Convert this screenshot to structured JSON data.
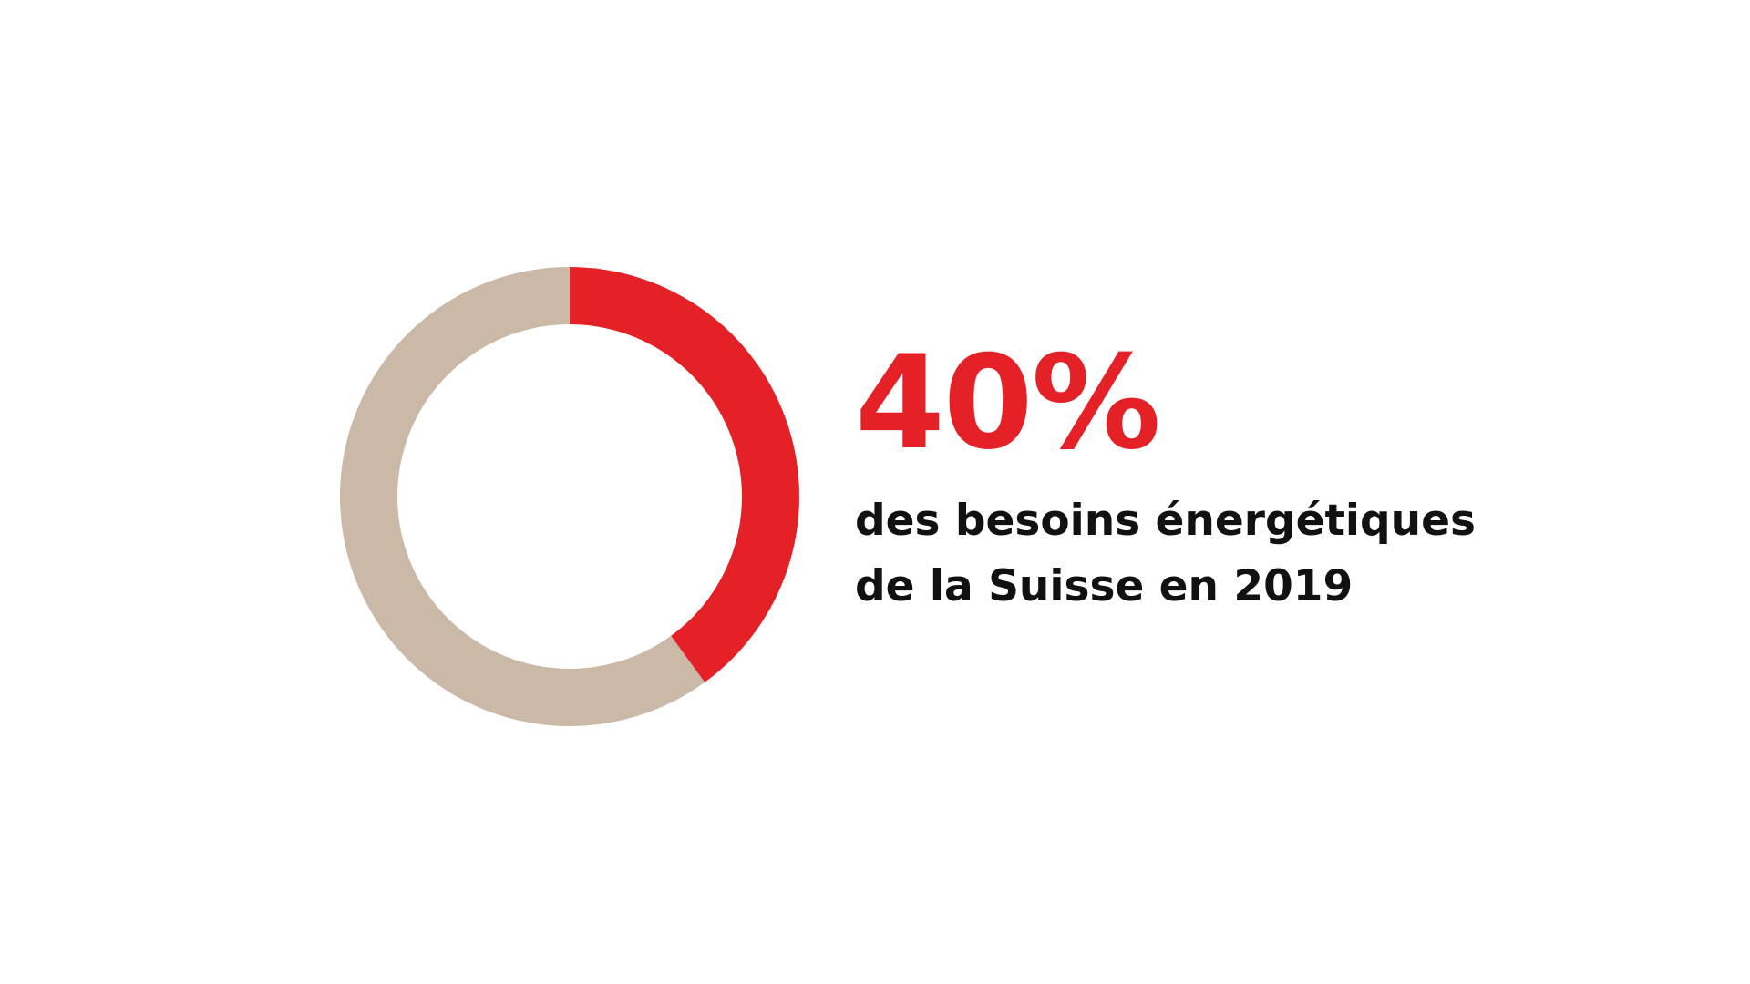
{
  "chart_data": {
    "type": "pie",
    "style": "donut",
    "slices": [
      {
        "value": 40,
        "color": "#e42127"
      },
      {
        "value": 60,
        "color": "#cbb9a8"
      }
    ],
    "start": "top",
    "direction": "clockwise"
  },
  "headline": {
    "value_text": "40%",
    "color": "#e42127"
  },
  "caption": {
    "line1": "des besoins énergétiques",
    "line2": "de la Suisse en 2019"
  }
}
